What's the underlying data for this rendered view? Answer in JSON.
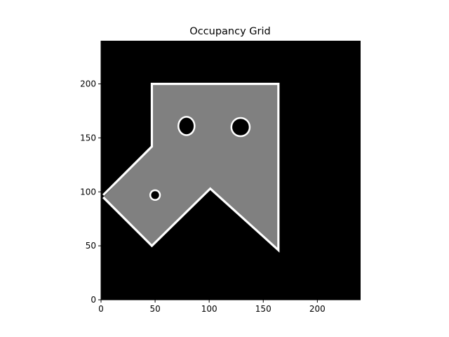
{
  "chart_data": {
    "type": "heatmap",
    "title": "Occupancy Grid",
    "xlabel": "",
    "ylabel": "",
    "xlim": [
      0,
      240
    ],
    "ylim": [
      0,
      240
    ],
    "x_ticks": [
      0,
      50,
      100,
      150,
      200
    ],
    "y_ticks": [
      0,
      50,
      100,
      150,
      200
    ],
    "grid": false,
    "legend": "none",
    "colors": {
      "unknown": "#000000",
      "free": "#808080",
      "occupied": "#ffffff"
    },
    "free_region": {
      "polygon": [
        [
          47,
          142
        ],
        [
          47,
          200
        ],
        [
          164,
          200
        ],
        [
          164,
          46
        ],
        [
          101,
          103
        ],
        [
          47,
          50
        ],
        [
          2,
          95
        ]
      ]
    },
    "occupied_boundary": {
      "polyline": [
        [
          2,
          95
        ],
        [
          47,
          50
        ],
        [
          101,
          103
        ],
        [
          164,
          46
        ],
        [
          164,
          200
        ],
        [
          47,
          200
        ],
        [
          47,
          142
        ],
        [
          2,
          97
        ]
      ]
    },
    "obstacles": [
      {
        "cx": 79,
        "cy": 161,
        "rx": 7,
        "ry": 8
      },
      {
        "cx": 129,
        "cy": 160,
        "rx": 8,
        "ry": 8
      },
      {
        "cx": 50,
        "cy": 97,
        "rx": 4,
        "ry": 4
      }
    ]
  }
}
